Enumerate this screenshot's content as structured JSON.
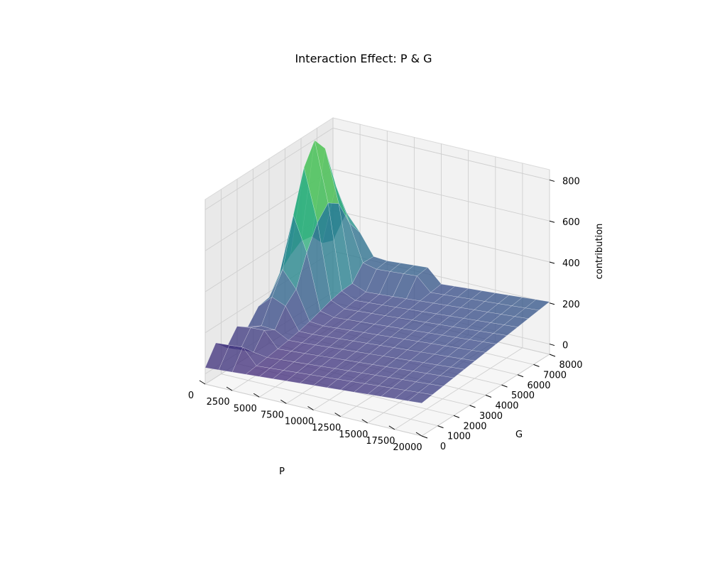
{
  "chart_data": {
    "type": "surface",
    "title": "Interaction Effect: P & G",
    "xlabel": "P",
    "ylabel": "G",
    "zlabel": "contribution",
    "xlim": [
      0,
      20000
    ],
    "ylim": [
      0,
      8000
    ],
    "zlim": [
      -50,
      850
    ],
    "x_ticks": [
      "0",
      "2500",
      "5000",
      "7500",
      "10000",
      "12500",
      "15000",
      "17500",
      "20000"
    ],
    "y_ticks": [
      "0",
      "1000",
      "2000",
      "3000",
      "4000",
      "5000",
      "6000",
      "7000",
      "8000"
    ],
    "z_ticks": [
      "0",
      "200",
      "400",
      "600",
      "800"
    ],
    "colormap": "viridis",
    "grid": true,
    "surface_points": [
      {
        "P": 500,
        "G": 500,
        "z": 40
      },
      {
        "P": 1000,
        "G": 3000,
        "z": 120
      },
      {
        "P": 1500,
        "G": 6000,
        "z": 780
      },
      {
        "P": 2000,
        "G": 8000,
        "z": 150
      },
      {
        "P": 3000,
        "G": 8000,
        "z": 200
      },
      {
        "P": 5000,
        "G": 8000,
        "z": 130
      },
      {
        "P": 10000,
        "G": 8000,
        "z": 90
      },
      {
        "P": 14000,
        "G": 8000,
        "z": 110
      },
      {
        "P": 20000,
        "G": 8000,
        "z": 80
      },
      {
        "P": 20000,
        "G": 0,
        "z": 10
      },
      {
        "P": 10000,
        "G": 4000,
        "z": 60
      },
      {
        "P": 14000,
        "G": 5000,
        "z": 140
      },
      {
        "P": 17000,
        "G": 3500,
        "z": 120
      }
    ]
  }
}
